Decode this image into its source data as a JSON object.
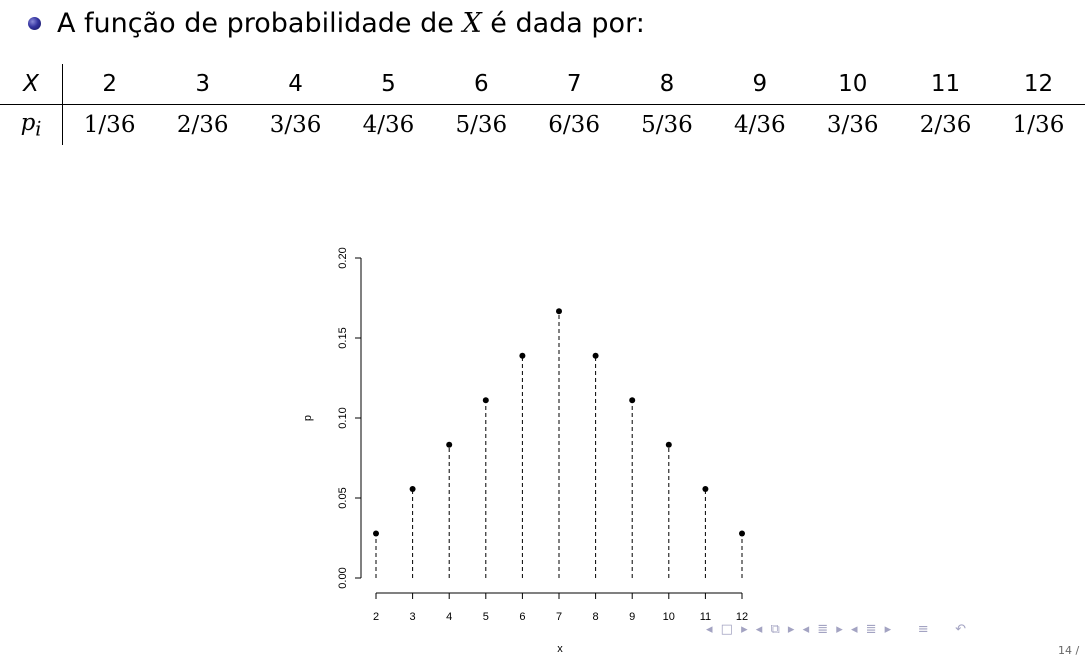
{
  "bullet": {
    "prefix": "A função de probabilidade de ",
    "var": "X",
    "suffix": " é dada por:"
  },
  "table": {
    "row_x_label": "X",
    "row_p_label": "p",
    "row_p_sub": "i",
    "x_values": [
      "2",
      "3",
      "4",
      "5",
      "6",
      "7",
      "8",
      "9",
      "10",
      "11",
      "12"
    ],
    "p_values": [
      "1/36",
      "2/36",
      "3/36",
      "4/36",
      "5/36",
      "6/36",
      "5/36",
      "4/36",
      "3/36",
      "2/36",
      "1/36"
    ]
  },
  "chart_data": {
    "type": "scatter",
    "style": "dashed vertical lines from zero with filled points",
    "x": [
      2,
      3,
      4,
      5,
      6,
      7,
      8,
      9,
      10,
      11,
      12
    ],
    "y": [
      0.0278,
      0.0556,
      0.0833,
      0.1111,
      0.1389,
      0.1667,
      0.1389,
      0.1111,
      0.0833,
      0.0556,
      0.0278
    ],
    "xlabel": "x",
    "ylabel": "p",
    "x_ticks": [
      "2",
      "3",
      "4",
      "5",
      "6",
      "7",
      "8",
      "9",
      "10",
      "11",
      "12"
    ],
    "y_ticks": [
      "0.00",
      "0.05",
      "0.10",
      "0.15",
      "0.20"
    ],
    "ylim": [
      0,
      0.2
    ],
    "xlim": [
      2,
      12
    ],
    "grid": false
  },
  "navigation": {
    "icons": [
      "nav-arrow-left-icon",
      "frame-icon",
      "nav-arrow-right-icon",
      "nav-arrow-left-icon",
      "subsection-icon",
      "nav-arrow-right-icon",
      "nav-arrow-left-icon",
      "section-icon",
      "nav-arrow-right-icon",
      "nav-arrow-left-icon",
      "section-icon",
      "nav-arrow-right-icon",
      "toc-icon",
      "search-icon"
    ],
    "page_label": "14 /"
  }
}
